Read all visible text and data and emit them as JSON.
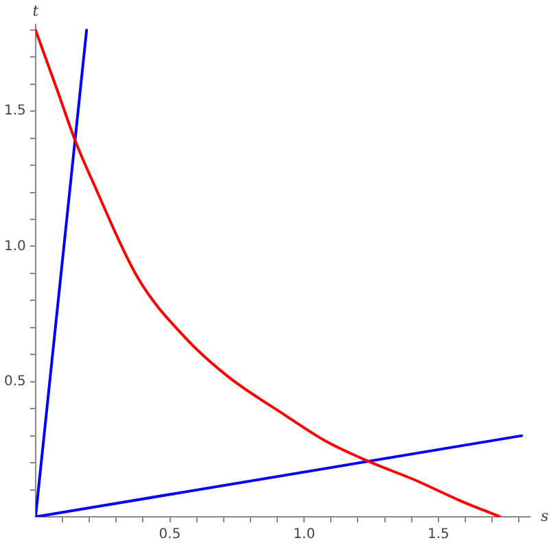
{
  "chart_data": {
    "type": "line",
    "xlabel": "s",
    "ylabel": "t",
    "xlim": [
      0,
      1.84
    ],
    "ylim": [
      0,
      1.82
    ],
    "xticks": [
      {
        "value": 0.1,
        "label": null
      },
      {
        "value": 0.2,
        "label": null
      },
      {
        "value": 0.3,
        "label": null
      },
      {
        "value": 0.4,
        "label": null
      },
      {
        "value": 0.5,
        "label": "0.5"
      },
      {
        "value": 0.6,
        "label": null
      },
      {
        "value": 0.7,
        "label": null
      },
      {
        "value": 0.8,
        "label": null
      },
      {
        "value": 0.9,
        "label": null
      },
      {
        "value": 1,
        "label": "1.0"
      },
      {
        "value": 1.1,
        "label": null
      },
      {
        "value": 1.2,
        "label": null
      },
      {
        "value": 1.3,
        "label": null
      },
      {
        "value": 1.4,
        "label": null
      },
      {
        "value": 1.5,
        "label": "1.5"
      },
      {
        "value": 1.6,
        "label": null
      },
      {
        "value": 1.7,
        "label": null
      },
      {
        "value": 1.8,
        "label": null
      }
    ],
    "yticks": [
      {
        "value": 0.1,
        "label": null
      },
      {
        "value": 0.2,
        "label": null
      },
      {
        "value": 0.3,
        "label": null
      },
      {
        "value": 0.4,
        "label": null
      },
      {
        "value": 0.5,
        "label": "0.5"
      },
      {
        "value": 0.6,
        "label": null
      },
      {
        "value": 0.7,
        "label": null
      },
      {
        "value": 0.8,
        "label": null
      },
      {
        "value": 0.9,
        "label": null
      },
      {
        "value": 1,
        "label": "1.0"
      },
      {
        "value": 1.1,
        "label": null
      },
      {
        "value": 1.2,
        "label": null
      },
      {
        "value": 1.3,
        "label": null
      },
      {
        "value": 1.4,
        "label": null
      },
      {
        "value": 1.5,
        "label": "1.5"
      },
      {
        "value": 1.6,
        "label": null
      },
      {
        "value": 1.7,
        "label": null
      },
      {
        "value": 1.8,
        "label": null
      }
    ],
    "grid": false,
    "legend": false,
    "marker": "none",
    "line_style": "solid",
    "series": [
      {
        "color": "#ff0000",
        "x": [
          0,
          0.08,
          0.148,
          0.215,
          0.38,
          0.55,
          0.715,
          0.915,
          1.08,
          1.24,
          1.415,
          1.58,
          1.73
        ],
        "values": [
          1.8,
          1.58,
          1.39,
          1.235,
          0.885,
          0.67,
          0.52,
          0.385,
          0.28,
          0.205,
          0.135,
          0.06,
          0
        ]
      },
      {
        "color": "#0000ff",
        "x": [
          0,
          0.19
        ],
        "values": [
          0,
          1.8
        ]
      },
      {
        "color": "#0000ff",
        "x": [
          0,
          1.81
        ],
        "values": [
          0,
          0.3
        ]
      }
    ]
  }
}
